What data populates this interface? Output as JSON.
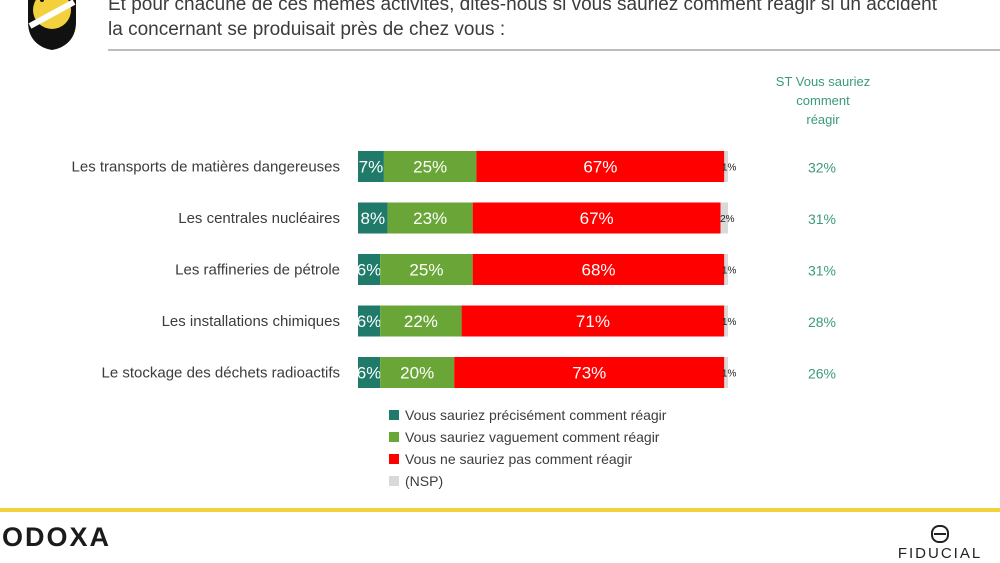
{
  "question": {
    "line1": "Et pour chacune de ces mêmes activités, dites-nous si vous sauriez comment réagir si un accident",
    "line2": "la concernant se produisait près de chez vous :"
  },
  "column_header": [
    "ST Vous sauriez",
    "comment",
    "réagir"
  ],
  "footer": {
    "odoxa": "ODOXA",
    "fiducial": "FIDUCIAL"
  },
  "colors": {
    "precise": "#1f7a6a",
    "vague": "#6aa637",
    "no": "#ff0000",
    "nsp": "#d9d9d9",
    "st_value": "#3a9a7e",
    "accent_yellow": "#f2d13c"
  },
  "chart_data": {
    "type": "bar",
    "orientation": "horizontal",
    "stacked": true,
    "normalized": true,
    "categories": [
      "Les transports de matières dangereuses",
      "Les centrales nucléaires",
      "Les raffineries de pétrole",
      "Les installations chimiques",
      "Le stockage des déchets radioactifs"
    ],
    "series": [
      {
        "name": "Vous sauriez précisément comment réagir",
        "values": [
          7,
          8,
          6,
          6,
          6
        ]
      },
      {
        "name": "Vous sauriez vaguement comment réagir",
        "values": [
          25,
          23,
          25,
          22,
          20
        ]
      },
      {
        "name": "Vous ne sauriez pas comment réagir",
        "values": [
          67,
          67,
          68,
          71,
          73
        ]
      },
      {
        "name": "(NSP)",
        "values": [
          1,
          2,
          1,
          1,
          1
        ]
      }
    ],
    "st_values": [
      "32%",
      "31%",
      "31%",
      "28%",
      "26%"
    ],
    "legend_position": "bottom"
  }
}
